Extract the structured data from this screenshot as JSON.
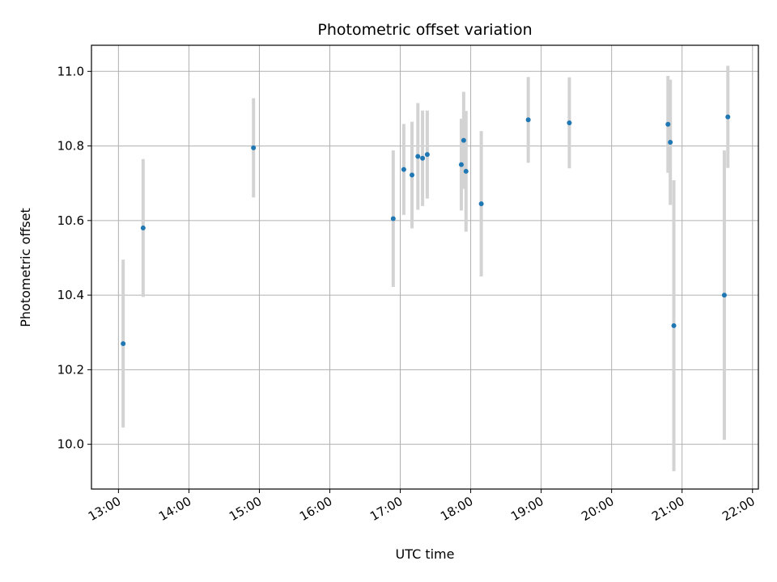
{
  "chart_data": {
    "type": "scatter",
    "title": "Photometric offset variation",
    "xlabel": "UTC time",
    "ylabel": "Photometric offset",
    "x_ticks": [
      "13:00",
      "14:00",
      "15:00",
      "16:00",
      "17:00",
      "18:00",
      "19:00",
      "20:00",
      "21:00",
      "22:00"
    ],
    "y_ticks": [
      "10.0",
      "10.2",
      "10.4",
      "10.6",
      "10.8",
      "11.0"
    ],
    "xlim": [
      "12:37",
      "22:05"
    ],
    "ylim": [
      9.88,
      11.07
    ],
    "grid": true,
    "colors": {
      "point": "#1f77b4",
      "errorbar": "#d3d3d3",
      "grid": "#b0b0b0"
    },
    "points": [
      {
        "x": "13:04",
        "y": 10.27,
        "err": 0.225
      },
      {
        "x": "13:21",
        "y": 10.58,
        "err": 0.185
      },
      {
        "x": "14:55",
        "y": 10.795,
        "err": 0.133
      },
      {
        "x": "16:54",
        "y": 10.605,
        "err": 0.183
      },
      {
        "x": "17:03",
        "y": 10.737,
        "err": 0.122
      },
      {
        "x": "17:10",
        "y": 10.722,
        "err": 0.143
      },
      {
        "x": "17:15",
        "y": 10.772,
        "err": 0.143
      },
      {
        "x": "17:19",
        "y": 10.767,
        "err": 0.128
      },
      {
        "x": "17:23",
        "y": 10.777,
        "err": 0.118
      },
      {
        "x": "17:52",
        "y": 10.75,
        "err": 0.123
      },
      {
        "x": "17:54",
        "y": 10.815,
        "err": 0.13
      },
      {
        "x": "17:56",
        "y": 10.732,
        "err": 0.162
      },
      {
        "x": "18:09",
        "y": 10.645,
        "err": 0.195
      },
      {
        "x": "18:49",
        "y": 10.87,
        "err": 0.115
      },
      {
        "x": "19:24",
        "y": 10.862,
        "err": 0.122
      },
      {
        "x": "20:48",
        "y": 10.858,
        "err": 0.13
      },
      {
        "x": "20:50",
        "y": 10.81,
        "err": 0.168
      },
      {
        "x": "20:53",
        "y": 10.318,
        "err": 0.39
      },
      {
        "x": "21:36",
        "y": 10.4,
        "err": 0.388
      },
      {
        "x": "21:39",
        "y": 10.878,
        "err": 0.137
      }
    ]
  }
}
